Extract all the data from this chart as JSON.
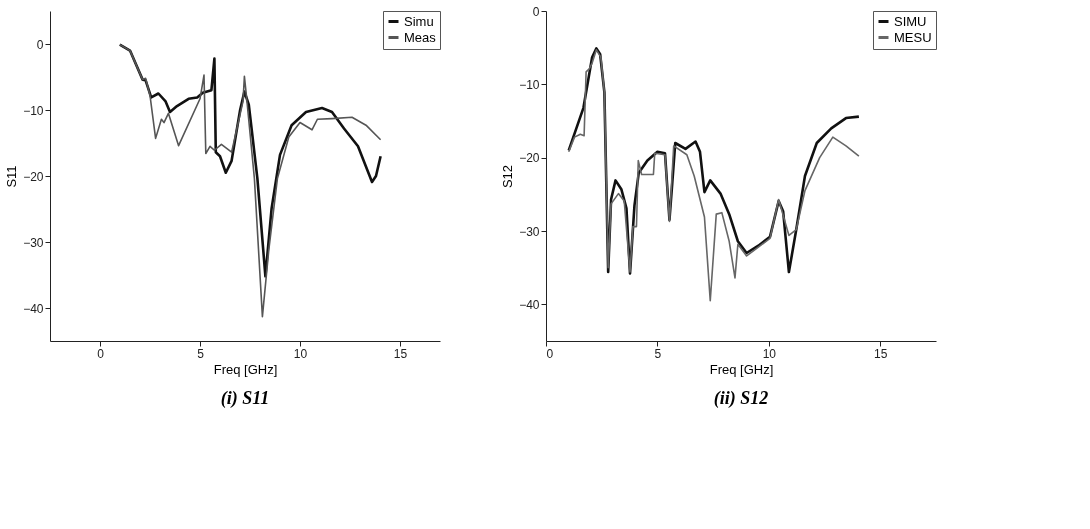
{
  "chart_data": [
    {
      "type": "line",
      "title": "(i) S11",
      "xlabel": "Freq [GHz]",
      "ylabel": "S11",
      "xlim": [
        -2.5,
        17
      ],
      "xticks": [
        0,
        5,
        10,
        15
      ],
      "ylim": [
        -45,
        5
      ],
      "yticks": [
        0,
        -10,
        -20,
        -30,
        -40
      ],
      "grid": false,
      "legend": "top right",
      "marker": "none",
      "line_style": "solid",
      "series": [
        {
          "name": "Simu",
          "color": "#111111",
          "x": [
            0.99,
            1.5,
            2.13,
            2.28,
            2.56,
            2.92,
            3.28,
            3.5,
            3.85,
            4.43,
            4.86,
            5.14,
            5.57,
            5.72,
            5.79,
            6.0,
            6.29,
            6.58,
            7.0,
            7.22,
            7.44,
            7.87,
            8.27,
            8.58,
            9.0,
            9.58,
            10.3,
            11.1,
            11.6,
            12.2,
            12.9,
            13.6,
            13.8,
            14.03
          ],
          "values": [
            -0.1,
            -1.0,
            -5.4,
            -5.5,
            -8.1,
            -7.5,
            -8.7,
            -10.3,
            -9.4,
            -8.3,
            -8.1,
            -7.4,
            -7.0,
            -2.2,
            -16.4,
            -17.0,
            -19.5,
            -17.7,
            -10.1,
            -7.2,
            -9.2,
            -20.4,
            -35.2,
            -24.9,
            -16.8,
            -12.3,
            -10.3,
            -9.7,
            -10.3,
            -12.8,
            -15.5,
            -20.9,
            -20.0,
            -17.0
          ]
        },
        {
          "name": "Meas",
          "color": "#555555",
          "x": [
            0.99,
            1.5,
            2.13,
            2.28,
            2.5,
            2.78,
            3.07,
            3.2,
            3.42,
            3.93,
            5.0,
            5.2,
            5.29,
            5.5,
            5.72,
            6.07,
            6.58,
            7.15,
            7.22,
            7.32,
            7.72,
            8.12,
            8.44,
            8.87,
            9.44,
            10.0,
            10.6,
            10.87,
            11.6,
            12.6,
            13.3,
            14.03
          ],
          "values": [
            -0.1,
            -1.0,
            -5.4,
            -5.2,
            -7.8,
            -14.3,
            -11.4,
            -11.9,
            -10.5,
            -15.4,
            -8.3,
            -4.7,
            -16.6,
            -15.5,
            -16.1,
            -15.2,
            -16.4,
            -8.7,
            -4.9,
            -7.8,
            -20.4,
            -41.3,
            -31.2,
            -20.4,
            -14.1,
            -11.9,
            -13.0,
            -11.4,
            -11.3,
            -11.1,
            -12.3,
            -14.5
          ]
        }
      ]
    },
    {
      "type": "line",
      "title": "(ii) S12",
      "xlabel": "Freq [GHz]",
      "ylabel": "S12",
      "xlim": [
        0,
        17.5
      ],
      "xticks": [
        0,
        5,
        10,
        15
      ],
      "ylim": [
        -45,
        0
      ],
      "yticks": [
        0,
        -10,
        -20,
        -30,
        -40
      ],
      "grid": false,
      "legend": "top right",
      "marker": "none",
      "line_style": "solid",
      "series": [
        {
          "name": "SIMU",
          "color": "#111111",
          "x": [
            1.02,
            1.68,
            2.07,
            2.26,
            2.43,
            2.62,
            2.79,
            2.92,
            3.12,
            3.38,
            3.61,
            3.77,
            3.97,
            4.16,
            4.55,
            5.0,
            5.34,
            5.54,
            5.67,
            5.8,
            6.26,
            6.71,
            6.91,
            7.11,
            7.37,
            7.83,
            8.22,
            8.61,
            9.0,
            9.53,
            10.05,
            10.44,
            10.64,
            10.9,
            11.23,
            11.62,
            12.15,
            12.8,
            13.46,
            14.04
          ],
          "values": [
            -19.0,
            -13.2,
            -6.3,
            -5.1,
            -5.9,
            -11.1,
            -35.6,
            -25.7,
            -23.1,
            -24.3,
            -26.9,
            -35.8,
            -26.5,
            -22.1,
            -20.4,
            -19.2,
            -19.4,
            -28.5,
            -23.3,
            -18.0,
            -18.8,
            -17.8,
            -19.2,
            -24.7,
            -23.1,
            -24.9,
            -27.7,
            -31.4,
            -33.0,
            -32.0,
            -30.8,
            -25.9,
            -27.3,
            -35.6,
            -29.8,
            -22.5,
            -18.0,
            -16.0,
            -14.6,
            -14.4
          ]
        },
        {
          "name": "MESU",
          "color": "#666666",
          "x": [
            1.02,
            1.28,
            1.54,
            1.71,
            1.8,
            1.94,
            2.07,
            2.26,
            2.46,
            2.62,
            2.79,
            2.92,
            3.25,
            3.51,
            3.77,
            3.9,
            4.06,
            4.14,
            4.29,
            4.82,
            4.88,
            5.34,
            5.54,
            5.73,
            6.32,
            6.65,
            7.11,
            7.37,
            7.64,
            7.89,
            8.22,
            8.48,
            8.61,
            9.0,
            9.53,
            10.05,
            10.44,
            10.9,
            11.23,
            11.62,
            12.28,
            12.87,
            13.46,
            14.04
          ],
          "values": [
            -19.2,
            -17.2,
            -16.8,
            -17.0,
            -8.3,
            -7.9,
            -7.1,
            -5.3,
            -6.3,
            -11.1,
            -35.0,
            -26.3,
            -24.9,
            -25.9,
            -35.6,
            -29.4,
            -29.4,
            -20.4,
            -22.3,
            -22.3,
            -19.4,
            -19.6,
            -28.7,
            -18.4,
            -19.6,
            -22.5,
            -28.1,
            -39.5,
            -27.7,
            -27.5,
            -31.4,
            -36.4,
            -31.8,
            -33.4,
            -32.2,
            -31.0,
            -25.7,
            -30.6,
            -29.8,
            -24.5,
            -20.0,
            -17.2,
            -18.4,
            -19.8
          ]
        }
      ]
    }
  ]
}
